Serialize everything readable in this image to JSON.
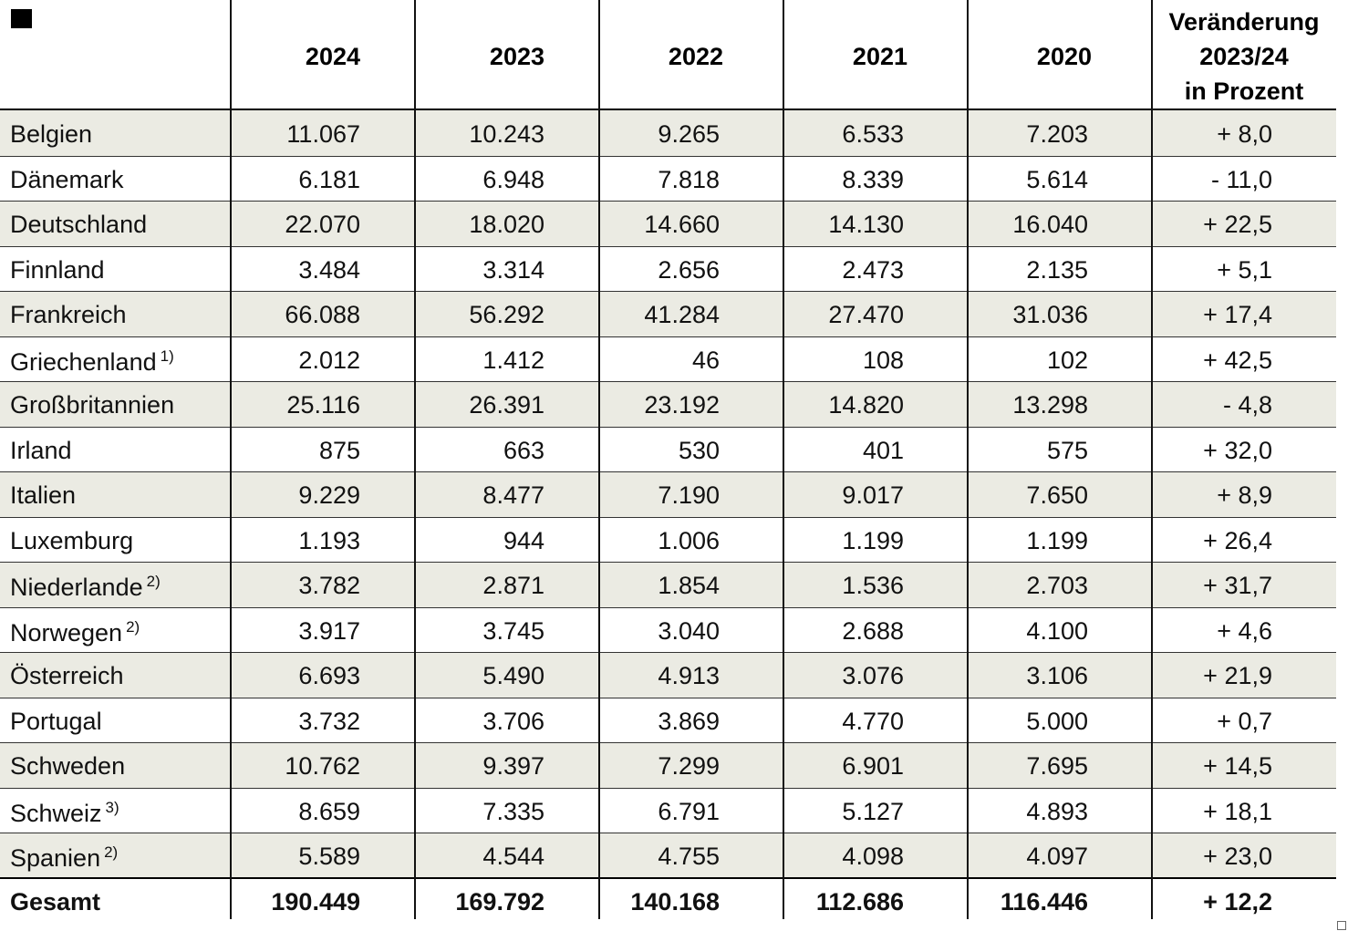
{
  "table": {
    "columns": [
      "2024",
      "2023",
      "2022",
      "2021",
      "2020"
    ],
    "change_header": [
      "Veränderung",
      "2023/24",
      "in Prozent"
    ],
    "rows": [
      {
        "name": "Belgien",
        "values": [
          "11.067",
          "10.243",
          "9.265",
          "6.533",
          "7.203"
        ],
        "change": "+ 8,0"
      },
      {
        "name": "Dänemark",
        "values": [
          "6.181",
          "6.948",
          "7.818",
          "8.339",
          "5.614"
        ],
        "change": "- 11,0"
      },
      {
        "name": "Deutschland",
        "values": [
          "22.070",
          "18.020",
          "14.660",
          "14.130",
          "16.040"
        ],
        "change": "+ 22,5"
      },
      {
        "name": "Finnland",
        "values": [
          "3.484",
          "3.314",
          "2.656",
          "2.473",
          "2.135"
        ],
        "change": "+ 5,1"
      },
      {
        "name": "Frankreich",
        "values": [
          "66.088",
          "56.292",
          "41.284",
          "27.470",
          "31.036"
        ],
        "change": "+ 17,4"
      },
      {
        "name": "Griechenland",
        "note": "1)",
        "values": [
          "2.012",
          "1.412",
          "46",
          "108",
          "102"
        ],
        "change": "+ 42,5"
      },
      {
        "name": "Großbritannien",
        "values": [
          "25.116",
          "26.391",
          "23.192",
          "14.820",
          "13.298"
        ],
        "change": "- 4,8"
      },
      {
        "name": "Irland",
        "values": [
          "875",
          "663",
          "530",
          "401",
          "575"
        ],
        "change": "+ 32,0"
      },
      {
        "name": "Italien",
        "values": [
          "9.229",
          "8.477",
          "7.190",
          "9.017",
          "7.650"
        ],
        "change": "+ 8,9"
      },
      {
        "name": "Luxemburg",
        "values": [
          "1.193",
          "944",
          "1.006",
          "1.199",
          "1.199"
        ],
        "change": "+ 26,4"
      },
      {
        "name": "Niederlande",
        "note": "2)",
        "values": [
          "3.782",
          "2.871",
          "1.854",
          "1.536",
          "2.703"
        ],
        "change": "+ 31,7"
      },
      {
        "name": "Norwegen",
        "note": "2)",
        "values": [
          "3.917",
          "3.745",
          "3.040",
          "2.688",
          "4.100"
        ],
        "change": "+ 4,6"
      },
      {
        "name": "Österreich",
        "values": [
          "6.693",
          "5.490",
          "4.913",
          "3.076",
          "3.106"
        ],
        "change": "+ 21,9"
      },
      {
        "name": "Portugal",
        "values": [
          "3.732",
          "3.706",
          "3.869",
          "4.770",
          "5.000"
        ],
        "change": "+ 0,7"
      },
      {
        "name": "Schweden",
        "values": [
          "10.762",
          "9.397",
          "7.299",
          "6.901",
          "7.695"
        ],
        "change": "+ 14,5"
      },
      {
        "name": "Schweiz",
        "note": "3)",
        "values": [
          "8.659",
          "7.335",
          "6.791",
          "5.127",
          "4.893"
        ],
        "change": "+ 18,1"
      },
      {
        "name": "Spanien",
        "note": "2)",
        "values": [
          "5.589",
          "4.544",
          "4.755",
          "4.098",
          "4.097"
        ],
        "change": "+ 23,0"
      }
    ],
    "total": {
      "name": "Gesamt",
      "values": [
        "190.449",
        "169.792",
        "140.168",
        "112.686",
        "116.446"
      ],
      "change": "+ 12,2"
    }
  }
}
